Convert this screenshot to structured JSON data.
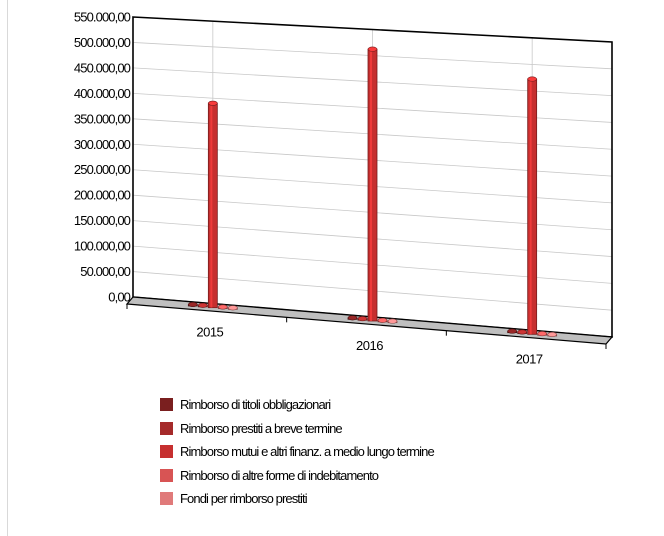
{
  "chart_data": {
    "type": "bar",
    "categories": [
      "2015",
      "2016",
      "2017"
    ],
    "series": [
      {
        "name": "Rimborso di titoli obbligazionari",
        "color": "#7a1f1f",
        "values": [
          0,
          0,
          0
        ]
      },
      {
        "name": "Rimborso prestiti a breve termine",
        "color": "#a52a2a",
        "values": [
          0,
          0,
          0
        ]
      },
      {
        "name": "Rimborso mutui e altri finanz. a medio lungo termine",
        "color": "#c62f2f",
        "values": [
          398000,
          520000,
          480000
        ]
      },
      {
        "name": "Rimborso di altre forme di indebitamento",
        "color": "#d85454",
        "values": [
          0,
          0,
          0
        ]
      },
      {
        "name": "Fondi per rimborso prestiti",
        "color": "#e07a7a",
        "values": [
          0,
          0,
          0
        ]
      }
    ],
    "y_ticks": [
      "0,00",
      "50.000,00",
      "100.000,00",
      "150.000,00",
      "200.000,00",
      "250.000,00",
      "300.000,00",
      "350.000,00",
      "400.000,00",
      "450.000,00",
      "500.000,00",
      "550.000,00"
    ],
    "ylim": [
      0,
      550000
    ],
    "grid": true,
    "legend_position": "bottom",
    "title": "",
    "xlabel": "",
    "ylabel": ""
  }
}
